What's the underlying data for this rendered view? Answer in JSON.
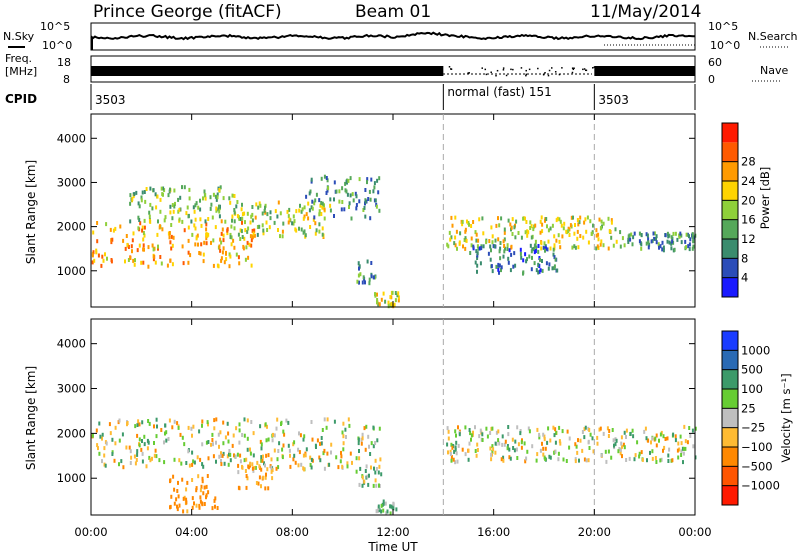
{
  "header": {
    "station": "Prince George (fitACF)",
    "beam": "Beam 01",
    "date": "11/May/2014"
  },
  "top_panels": {
    "nsky_label": "N.Sky",
    "nsearch_label": "N.Search",
    "noise_ticks": [
      "10^5",
      "10^0"
    ],
    "freq_label_line1": "Freq.",
    "freq_label_line2": "[MHz]",
    "freq_ticks": [
      "18",
      "8"
    ],
    "nave_label": "Nave",
    "nave_ticks": [
      "60",
      "0"
    ],
    "cpid_label": "CPID",
    "cpid_segments": [
      {
        "label": "3503",
        "start_h": 0
      },
      {
        "label": "normal (fast) 151",
        "start_h": 14
      },
      {
        "label": "3503",
        "start_h": 20
      }
    ]
  },
  "axes": {
    "xlabel": "Time UT",
    "x_ticks": [
      "00:00",
      "04:00",
      "08:00",
      "12:00",
      "16:00",
      "20:00",
      "00:00"
    ],
    "ylabel": "Slant Range [km]",
    "y_ticks": [
      "1000",
      "2000",
      "3000",
      "4000"
    ]
  },
  "power_colorbar": {
    "label": "Power [dB]",
    "ticks": [
      "4",
      "8",
      "12",
      "16",
      "20",
      "24",
      "28"
    ],
    "colors": [
      "#1a1aff",
      "#2b4cb8",
      "#3a8c6e",
      "#55a85a",
      "#8fcf3a",
      "#ffd400",
      "#ff9a00",
      "#ff5a00",
      "#ff1a00"
    ]
  },
  "velocity_colorbar": {
    "label": "Velocity [m s⁻¹]",
    "ticks": [
      "1000",
      "500",
      "100",
      "25",
      "−25",
      "−100",
      "−500",
      "−1000"
    ],
    "colors": [
      "#1a3cff",
      "#2a6ab4",
      "#3c9a6a",
      "#66cc33",
      "#bfbfbf",
      "#ffbb33",
      "#ff8800",
      "#ff5500",
      "#ff1a00"
    ]
  },
  "chart_data": {
    "type": "heatmap",
    "x_range_hours": [
      0,
      24
    ],
    "y_range_km": [
      180,
      4550
    ],
    "cpid_boundaries_h": [
      14,
      20
    ],
    "power_regions": [
      {
        "t0": 0.0,
        "t1": 6.5,
        "center_km": 1650,
        "thick_km": 650,
        "level_db": 22
      },
      {
        "t0": 5.5,
        "t1": 9.5,
        "center_km": 2200,
        "thick_km": 500,
        "level_db": 16
      },
      {
        "t0": 8.5,
        "t1": 11.5,
        "center_km": 2700,
        "thick_km": 600,
        "level_db": 10
      },
      {
        "t0": 1.5,
        "t1": 5.8,
        "center_km": 2550,
        "thick_km": 500,
        "level_db": 14
      },
      {
        "t0": 10.5,
        "t1": 11.3,
        "center_km": 1000,
        "thick_km": 350,
        "level_db": 10
      },
      {
        "t0": 11.2,
        "t1": 12.2,
        "center_km": 400,
        "thick_km": 200,
        "level_db": 18
      },
      {
        "t0": 14.1,
        "t1": 21.0,
        "center_km": 1900,
        "thick_km": 450,
        "level_db": 18
      },
      {
        "t0": 15.0,
        "t1": 18.5,
        "center_km": 1300,
        "thick_km": 400,
        "level_db": 8
      },
      {
        "t0": 21.0,
        "t1": 24.0,
        "center_km": 1700,
        "thick_km": 250,
        "level_db": 10
      }
    ],
    "velocity_regions": [
      {
        "t0": 0.0,
        "t1": 11.5,
        "center_km": 1800,
        "thick_km": 700,
        "level_ms": 0
      },
      {
        "t0": 3.0,
        "t1": 5.0,
        "center_km": 700,
        "thick_km": 500,
        "level_ms": -200
      },
      {
        "t0": 5.8,
        "t1": 7.2,
        "center_km": 1200,
        "thick_km": 500,
        "level_ms": -150
      },
      {
        "t0": 10.5,
        "t1": 11.5,
        "center_km": 1100,
        "thick_km": 300,
        "level_ms": 80
      },
      {
        "t0": 11.3,
        "t1": 12.1,
        "center_km": 400,
        "thick_km": 200,
        "level_ms": 100
      },
      {
        "t0": 14.1,
        "t1": 24.0,
        "center_km": 1800,
        "thick_km": 500,
        "level_ms": 0
      }
    ]
  }
}
